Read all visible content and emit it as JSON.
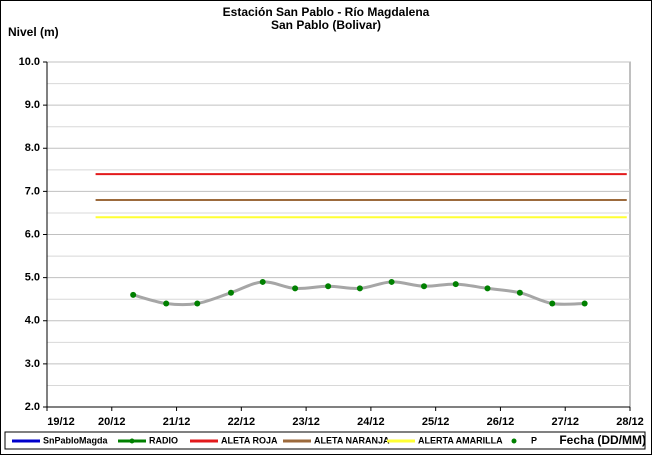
{
  "chart_data": {
    "type": "line",
    "title": "Estación San Pablo - Río Magdalena",
    "subtitle": "San Pablo (Bolivar)",
    "y_label": "Nivel (m)",
    "x_label": "Fecha (DD/MM)",
    "xlim": [
      19,
      28
    ],
    "xticks": [
      {
        "value": 19,
        "label": "19/12"
      },
      {
        "value": 20,
        "label": "20/12"
      },
      {
        "value": 21,
        "label": "21/12"
      },
      {
        "value": 22,
        "label": "22/12"
      },
      {
        "value": 23,
        "label": "23/12"
      },
      {
        "value": 24,
        "label": "24/12"
      },
      {
        "value": 25,
        "label": "25/12"
      },
      {
        "value": 26,
        "label": "26/12"
      },
      {
        "value": 27,
        "label": "27/12"
      },
      {
        "value": 28,
        "label": "28/12"
      }
    ],
    "ylim": [
      2,
      10
    ],
    "yticks": [
      {
        "value": 2,
        "label": "2.0"
      },
      {
        "value": 3,
        "label": "3.0"
      },
      {
        "value": 4,
        "label": "4.0"
      },
      {
        "value": 5,
        "label": "5.0"
      },
      {
        "value": 6,
        "label": "6.0"
      },
      {
        "value": 7,
        "label": "7.0"
      },
      {
        "value": 8,
        "label": "8.0"
      },
      {
        "value": 9,
        "label": "9.0"
      },
      {
        "value": 10,
        "label": "10.0"
      }
    ],
    "grid": true,
    "legend": "bottom",
    "series": [
      {
        "name": "SnPabloMagda",
        "color": "#0000cc",
        "x": [],
        "values": []
      },
      {
        "name": "RADIO",
        "color": "#008000",
        "line_color": "#a6a6a6",
        "smooth": true,
        "markers": true,
        "x": [
          20.33,
          20.84,
          21.32,
          21.84,
          22.33,
          22.83,
          23.34,
          23.83,
          24.32,
          24.82,
          25.31,
          25.8,
          26.3,
          26.8,
          27.3
        ],
        "values": [
          4.6,
          4.4,
          4.4,
          4.65,
          4.9,
          4.75,
          4.8,
          4.75,
          4.9,
          4.8,
          4.85,
          4.75,
          4.65,
          4.4,
          4.4
        ]
      },
      {
        "name": "ALETA ROJA",
        "color": "#e31a1c",
        "x": [
          19.75,
          27.95
        ],
        "values": [
          7.4,
          7.4
        ]
      },
      {
        "name": "ALETA NARANJA",
        "color": "#9c6a3c",
        "x": [
          19.75,
          27.95
        ],
        "values": [
          6.8,
          6.8
        ]
      },
      {
        "name": "ALERTA AMARILLA",
        "color": "#ffff33",
        "x": [
          19.75,
          27.95
        ],
        "values": [
          6.4,
          6.4
        ]
      },
      {
        "name": "P",
        "color": "#008000",
        "markers": true,
        "noline": true,
        "x": [],
        "values": []
      }
    ]
  }
}
